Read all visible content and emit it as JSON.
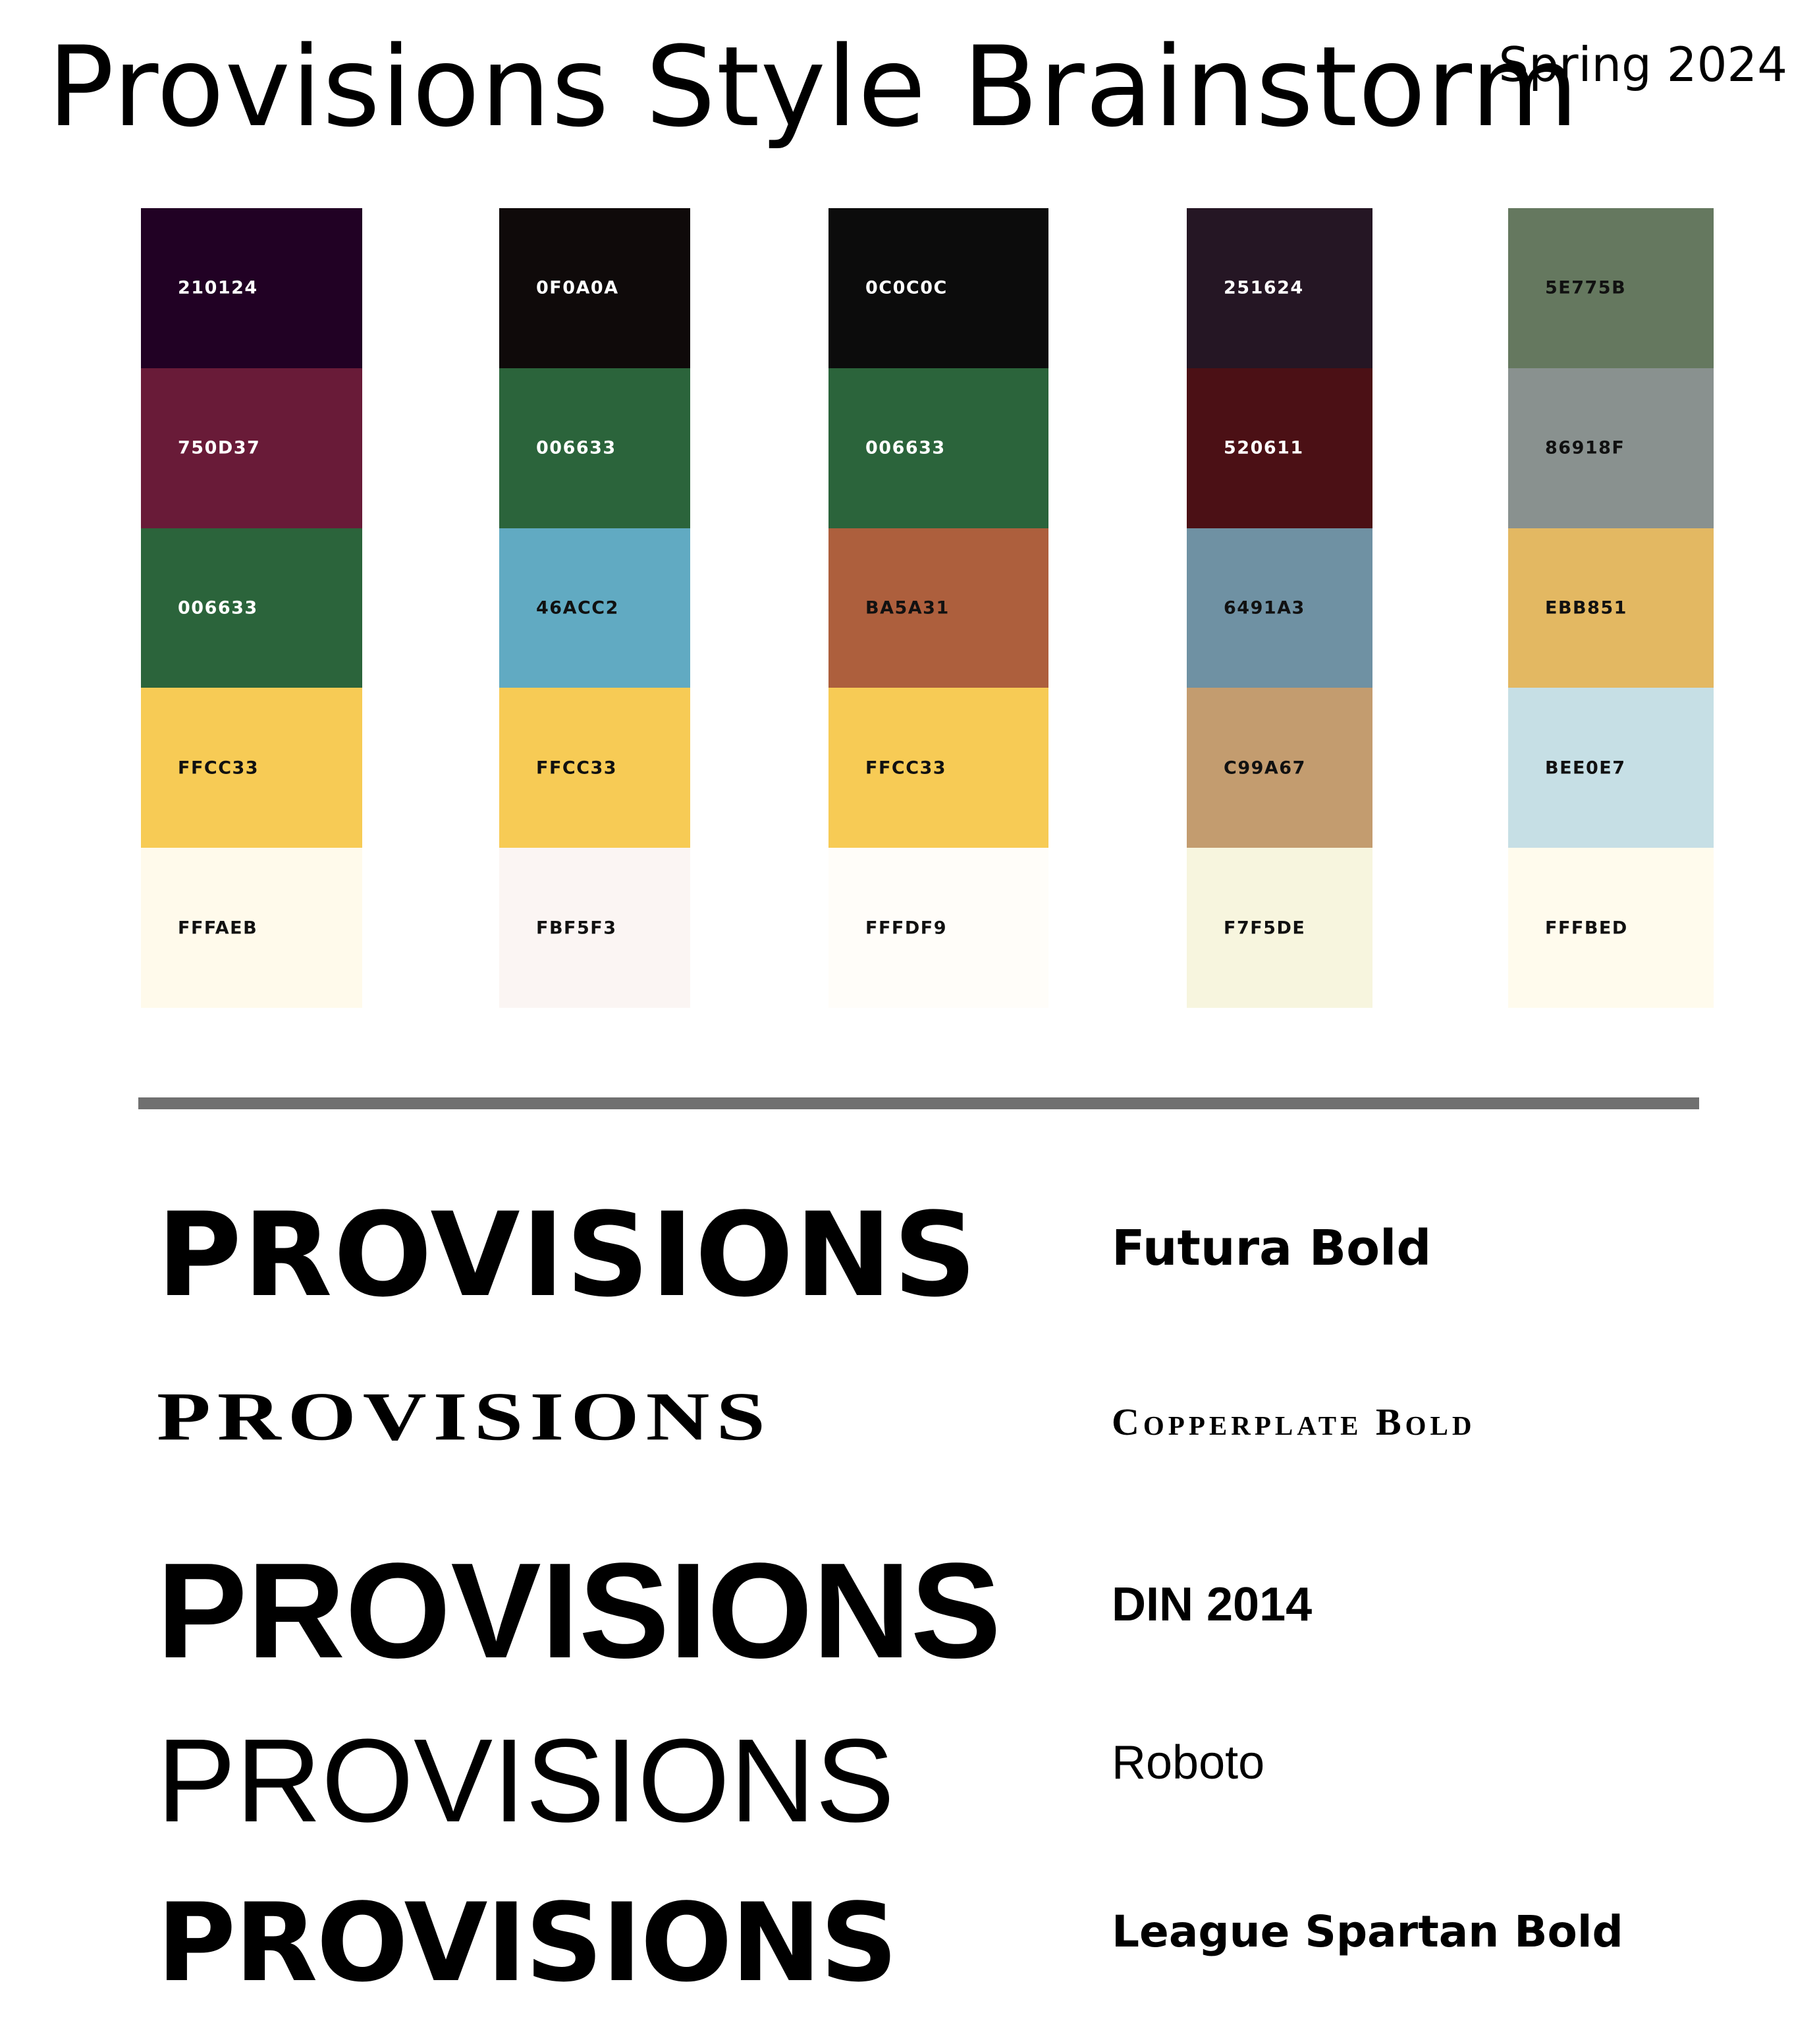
{
  "header": {
    "title": "Provisions Style Brainstorm",
    "season": "Spring 2024"
  },
  "palettes": [
    {
      "swatches": [
        {
          "code": "210124",
          "color": "#210124",
          "text": "light"
        },
        {
          "code": "750D37",
          "color": "#691B38",
          "text": "light"
        },
        {
          "code": "006633",
          "color": "#2B643B",
          "text": "light"
        },
        {
          "code": "FFCC33",
          "color": "#F7CB55",
          "text": "dark"
        },
        {
          "code": "FFFAEB",
          "color": "#FFFAEB",
          "text": "dark"
        }
      ]
    },
    {
      "swatches": [
        {
          "code": "0F0A0A",
          "color": "#0F0A0A",
          "text": "light"
        },
        {
          "code": "006633",
          "color": "#2B643B",
          "text": "light"
        },
        {
          "code": "46ACC2",
          "color": "#61AAC2",
          "text": "dark"
        },
        {
          "code": "FFCC33",
          "color": "#F7CB55",
          "text": "dark"
        },
        {
          "code": "FBF5F3",
          "color": "#FBF5F3",
          "text": "dark"
        }
      ]
    },
    {
      "swatches": [
        {
          "code": "0C0C0C",
          "color": "#0C0C0C",
          "text": "light"
        },
        {
          "code": "006633",
          "color": "#2B643B",
          "text": "light"
        },
        {
          "code": "BA5A31",
          "color": "#AD5F3D",
          "text": "dark"
        },
        {
          "code": "FFCC33",
          "color": "#F7CB55",
          "text": "dark"
        },
        {
          "code": "FFFDF9",
          "color": "#FFFDF9",
          "text": "dark"
        }
      ]
    },
    {
      "swatches": [
        {
          "code": "251624",
          "color": "#251624",
          "text": "light"
        },
        {
          "code": "520611",
          "color": "#4B1015",
          "text": "light"
        },
        {
          "code": "6491A3",
          "color": "#6F91A3",
          "text": "dark"
        },
        {
          "code": "C99A67",
          "color": "#C39C6F",
          "text": "dark"
        },
        {
          "code": "F7F5DE",
          "color": "#F7F5DE",
          "text": "dark"
        }
      ]
    },
    {
      "swatches": [
        {
          "code": "5E775B",
          "color": "#65785F",
          "text": "dark"
        },
        {
          "code": "86918F",
          "color": "#89918F",
          "text": "dark"
        },
        {
          "code": "EBB851",
          "color": "#E3B862",
          "text": "dark"
        },
        {
          "code": "BEE0E7",
          "color": "#C6DFE5",
          "text": "dark"
        },
        {
          "code": "FFFBED",
          "color": "#FFFBED",
          "text": "dark"
        }
      ]
    }
  ],
  "fonts": [
    {
      "specimen": "PROVISIONS",
      "name": "Futura Bold"
    },
    {
      "specimen": "PROVISIONS",
      "name": "Copperplate Bold"
    },
    {
      "specimen": "PROVISIONS",
      "name": "DIN 2014"
    },
    {
      "specimen": "PROVISIONS",
      "name": "Roboto"
    },
    {
      "specimen": "PROVISIONS",
      "name": "League Spartan Bold"
    }
  ]
}
